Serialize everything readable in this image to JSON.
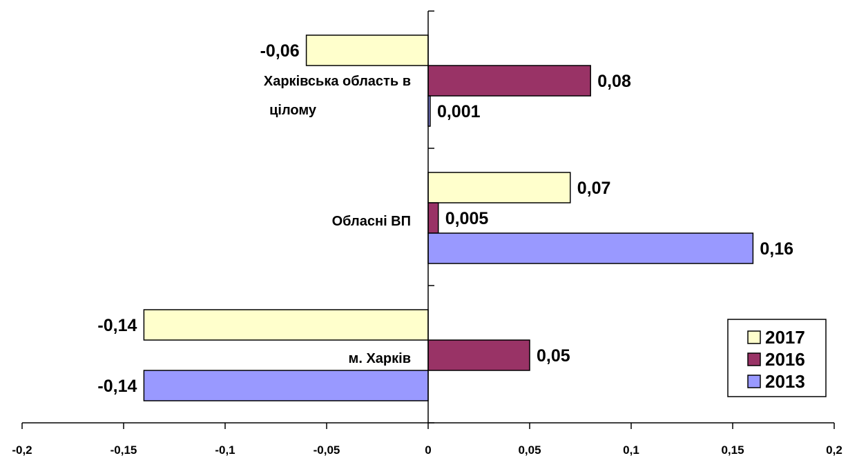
{
  "chart_data": {
    "type": "bar",
    "orientation": "horizontal",
    "categories": [
      "Харківська область в цілому",
      "Обласні ВП",
      "м. Харків"
    ],
    "category_lines": [
      [
        "Харківська область в",
        "цілому"
      ],
      [
        "Обласні ВП"
      ],
      [
        "м. Харків"
      ]
    ],
    "series": [
      {
        "name": "2017",
        "color": "#FFFFCC",
        "values": [
          -0.06,
          0.07,
          -0.14
        ],
        "labels": [
          "-0,06",
          "0,07",
          "-0,14"
        ]
      },
      {
        "name": "2016",
        "color": "#993366",
        "values": [
          0.08,
          0.005,
          0.05
        ],
        "labels": [
          "0,08",
          "0,005",
          "0,05"
        ]
      },
      {
        "name": "2013",
        "color": "#9999FF",
        "values": [
          0.001,
          0.16,
          -0.14
        ],
        "labels": [
          "0,001",
          "0,16",
          "-0,14"
        ]
      }
    ],
    "xlim": [
      -0.2,
      0.2
    ],
    "xticks": [
      -0.2,
      -0.15,
      -0.1,
      -0.05,
      0,
      0.05,
      0.1,
      0.15,
      0.2
    ],
    "xtick_labels": [
      "-0,2",
      "-0,15",
      "-0,1",
      "-0,05",
      "0",
      "0,05",
      "0,1",
      "0,15",
      "0,2"
    ],
    "legend": {
      "placement": "bottom-right",
      "order": [
        "2017",
        "2016",
        "2013"
      ]
    },
    "grid": false
  }
}
